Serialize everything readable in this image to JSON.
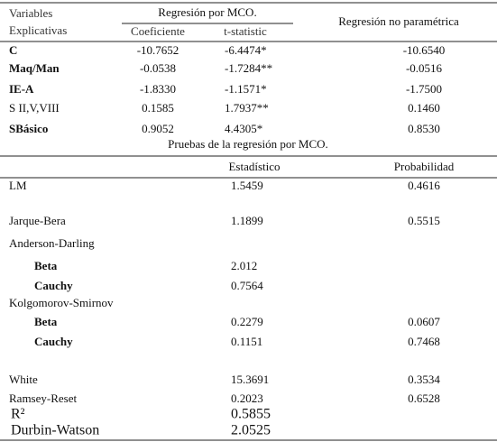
{
  "table": {
    "header": {
      "variables": [
        "Variables",
        "Explicativas"
      ],
      "ols": "Regresión por MCO.",
      "coef": "Coeficiente",
      "tstat": "t-statistic",
      "nonparam": "Regresión no paramétrica"
    },
    "rows": [
      [
        "C",
        "-10.7652",
        "-6.4474*",
        "-10.6540"
      ],
      [
        "Maq/Man",
        "-0.0538",
        "-1.7284**",
        "-0.0516"
      ],
      [
        "IE-A",
        "-1.8330",
        "-1.1571*",
        "-1.7500"
      ],
      [
        "S II,V,VIII",
        "0.1585",
        "1.7937**",
        "0.1460"
      ],
      [
        "SBásico",
        "0.9052",
        "4.4305*",
        "0.8530"
      ]
    ],
    "tests_title": "Pruebas de la regresión por MCO.",
    "tests_header": [
      "Estadístico",
      "Probabilidad"
    ],
    "tests": [
      [
        "LM",
        "1.5459",
        "0.4616"
      ],
      [
        "Jarque-Bera",
        "1.1899",
        "0.5515"
      ],
      [
        "Anderson-Darling"
      ],
      [
        "Beta",
        "2.012"
      ],
      [
        "Cauchy",
        "0.7564"
      ],
      [
        "Kolgomorov-Smirnov"
      ],
      [
        "Beta",
        "0.2279",
        "0.0607"
      ],
      [
        "Cauchy",
        "0.1151",
        "0.7468"
      ],
      [
        "White",
        "15.3691",
        "0.3534"
      ],
      [
        "Ramsey-Reset",
        "0.2023",
        "0.6528"
      ],
      [
        "R²",
        "0.5855"
      ],
      [
        "Durbin-Watson",
        "2.0525"
      ]
    ]
  }
}
